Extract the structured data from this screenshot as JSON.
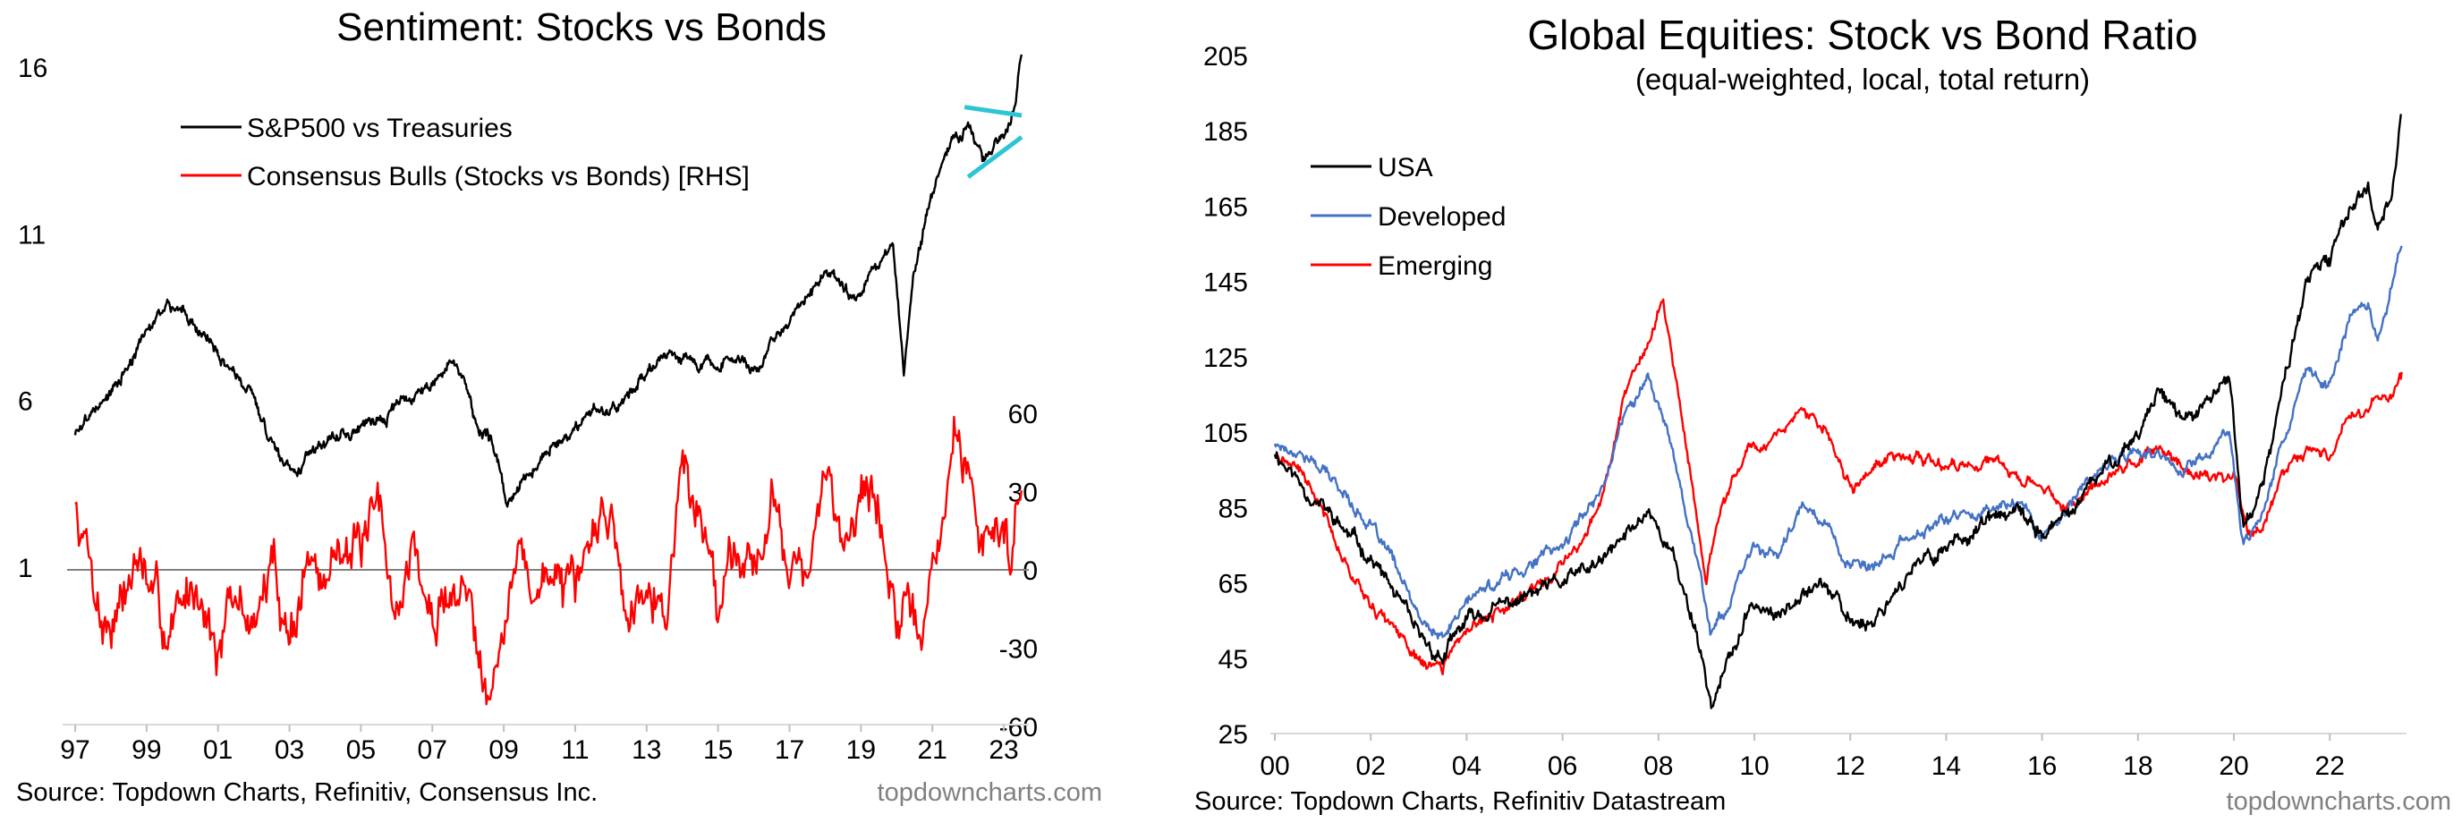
{
  "chart_data": [
    {
      "type": "line",
      "title": "Sentiment: Stocks vs Bonds",
      "x_tick_labels": [
        "97",
        "99",
        "01",
        "03",
        "05",
        "07",
        "09",
        "11",
        "13",
        "15",
        "17",
        "19",
        "21",
        "23"
      ],
      "x_tick_years": [
        1997,
        1999,
        2001,
        2003,
        2005,
        2007,
        2009,
        2011,
        2013,
        2015,
        2017,
        2019,
        2021,
        2023
      ],
      "xlim": [
        1996.9,
        2023.7
      ],
      "left_axis": {
        "ticks": [
          1,
          6,
          11,
          16
        ],
        "ylim": [
          -4,
          16
        ]
      },
      "right_axis": {
        "ticks": [
          -60,
          -30,
          0,
          30,
          60
        ],
        "ylim": [
          -60,
          60
        ]
      },
      "legend_position": "top-left",
      "legend": [
        {
          "label": "S&P500 vs Treasuries",
          "color": "#000000"
        },
        {
          "label": "Consensus Bulls (Stocks vs Bonds) [RHS]",
          "color": "#ff0000"
        }
      ],
      "series": [
        {
          "name": "S&P500 vs Treasuries",
          "axis": "left",
          "color": "#000000",
          "noise": 0.22,
          "x": [
            1997.0,
            1997.5,
            1998.0,
            1998.6,
            1999.0,
            1999.5,
            2000.0,
            2000.3,
            2000.8,
            2001.3,
            2001.8,
            2002.4,
            2002.8,
            2003.2,
            2003.7,
            2004.5,
            2005.5,
            2006.5,
            2007.0,
            2007.5,
            2007.9,
            2008.3,
            2008.8,
            2009.1,
            2009.6,
            2010.3,
            2010.8,
            2011.5,
            2012.0,
            2012.8,
            2013.5,
            2014.5,
            2015.5,
            2016.0,
            2016.5,
            2017.0,
            2017.5,
            2018.0,
            2018.5,
            2018.9,
            2019.3,
            2019.9,
            2020.2,
            2020.45,
            2020.8,
            2021.2,
            2021.6,
            2022.0,
            2022.4,
            2022.8,
            2023.0,
            2023.3,
            2023.5
          ],
          "y": [
            5.0,
            5.8,
            6.2,
            7.2,
            8.0,
            8.8,
            8.8,
            8.3,
            7.8,
            6.9,
            6.5,
            5.0,
            4.2,
            4.0,
            4.6,
            5.0,
            5.4,
            6.2,
            6.6,
            7.1,
            6.6,
            5.2,
            4.4,
            2.8,
            3.7,
            4.6,
            5.0,
            5.8,
            5.6,
            6.7,
            7.3,
            7.1,
            7.3,
            6.9,
            7.8,
            8.4,
            9.0,
            9.8,
            9.3,
            9.1,
            10.0,
            10.7,
            6.8,
            9.7,
            11.3,
            13.0,
            13.7,
            14.3,
            13.2,
            13.8,
            14.0,
            14.8,
            16.5
          ]
        },
        {
          "name": "Consensus Bulls (Stocks vs Bonds) [RHS]",
          "axis": "right",
          "color": "#ff0000",
          "noise": 14,
          "x": [
            1997.0,
            1997.4,
            1997.8,
            1998.3,
            1998.8,
            1999.4,
            2000.0,
            2000.5,
            2001.0,
            2001.5,
            2002.0,
            2002.6,
            2003.0,
            2003.5,
            2004.0,
            2004.5,
            2005.0,
            2005.5,
            2006.0,
            2006.5,
            2007.0,
            2007.5,
            2008.0,
            2008.5,
            2009.0,
            2009.5,
            2010.0,
            2010.5,
            2011.0,
            2011.5,
            2012.0,
            2012.5,
            2013.0,
            2013.5,
            2014.0,
            2014.5,
            2015.0,
            2015.5,
            2016.0,
            2016.5,
            2017.0,
            2017.5,
            2018.0,
            2018.5,
            2019.0,
            2019.5,
            2020.0,
            2020.4,
            2020.8,
            2021.2,
            2021.6,
            2022.0,
            2022.4,
            2022.8,
            2023.2,
            2023.5
          ],
          "y": [
            25,
            8,
            -20,
            -10,
            5,
            -25,
            -15,
            0,
            -30,
            -15,
            -20,
            0,
            -25,
            5,
            -10,
            20,
            5,
            15,
            -15,
            10,
            -25,
            -5,
            -10,
            -35,
            -20,
            5,
            -10,
            5,
            -20,
            15,
            25,
            -20,
            10,
            -15,
            40,
            20,
            -10,
            15,
            5,
            25,
            10,
            -5,
            30,
            15,
            35,
            20,
            -15,
            -30,
            -20,
            10,
            50,
            35,
            10,
            20,
            10,
            35
          ]
        }
      ]
    },
    {
      "type": "line",
      "title": "Global Equities:  Stock vs Bond Ratio",
      "subtitle": "(equal-weighted, local, total return)",
      "x_tick_labels": [
        "00",
        "02",
        "04",
        "06",
        "08",
        "10",
        "12",
        "14",
        "16",
        "18",
        "20",
        "22"
      ],
      "x_tick_years": [
        2000,
        2002,
        2004,
        2006,
        2008,
        2010,
        2012,
        2014,
        2016,
        2018,
        2020,
        2022
      ],
      "xlim": [
        2000,
        2023.6
      ],
      "y_ticks": [
        25,
        45,
        65,
        85,
        105,
        125,
        145,
        165,
        185,
        205
      ],
      "ylim": [
        25,
        205
      ],
      "legend_position": "top-left",
      "legend": [
        {
          "label": "USA",
          "color": "#000000"
        },
        {
          "label": "Developed",
          "color": "#4472c4"
        },
        {
          "label": "Emerging",
          "color": "#ff0000"
        }
      ],
      "series": [
        {
          "name": "USA",
          "color": "#000000",
          "noise": 2.6,
          "x": [
            2000.0,
            2000.5,
            2001.0,
            2001.5,
            2002.0,
            2002.5,
            2003.0,
            2003.5,
            2004.0,
            2005.0,
            2006.0,
            2006.8,
            2007.5,
            2007.8,
            2008.3,
            2008.8,
            2009.1,
            2009.5,
            2010.0,
            2010.5,
            2011.0,
            2011.5,
            2011.9,
            2012.5,
            2013.0,
            2014.0,
            2015.0,
            2015.5,
            2016.0,
            2016.5,
            2017.0,
            2017.5,
            2018.0,
            2018.5,
            2018.9,
            2019.5,
            2019.9,
            2020.2,
            2020.6,
            2021.0,
            2021.5,
            2022.0,
            2022.4,
            2022.8,
            2023.0,
            2023.3,
            2023.5
          ],
          "y": [
            100,
            92,
            85,
            78,
            72,
            62,
            50,
            45,
            55,
            60,
            65,
            70,
            80,
            85,
            72,
            52,
            33,
            45,
            60,
            55,
            65,
            65,
            55,
            55,
            65,
            75,
            82,
            83,
            78,
            82,
            90,
            98,
            105,
            118,
            108,
            112,
            120,
            80,
            90,
            115,
            145,
            150,
            165,
            170,
            160,
            170,
            190
          ]
        },
        {
          "name": "Developed",
          "color": "#4472c4",
          "noise": 2.0,
          "x": [
            2000.0,
            2000.5,
            2001.0,
            2001.5,
            2002.0,
            2002.5,
            2003.0,
            2003.5,
            2004.0,
            2005.0,
            2006.0,
            2006.8,
            2007.3,
            2007.8,
            2008.3,
            2008.8,
            2009.1,
            2009.5,
            2010.0,
            2010.5,
            2011.0,
            2011.5,
            2011.9,
            2012.5,
            2013.0,
            2014.0,
            2015.0,
            2015.5,
            2016.0,
            2016.5,
            2017.0,
            2017.5,
            2018.0,
            2018.5,
            2018.9,
            2019.5,
            2019.9,
            2020.2,
            2020.6,
            2021.0,
            2021.5,
            2022.0,
            2022.4,
            2022.8,
            2023.0,
            2023.3,
            2023.5
          ],
          "y": [
            102,
            100,
            95,
            88,
            80,
            70,
            55,
            50,
            60,
            68,
            75,
            90,
            110,
            120,
            100,
            72,
            52,
            60,
            75,
            72,
            85,
            82,
            70,
            68,
            75,
            82,
            85,
            87,
            78,
            84,
            92,
            98,
            100,
            98,
            95,
            100,
            105,
            75,
            85,
            102,
            120,
            118,
            135,
            140,
            130,
            145,
            155
          ]
        },
        {
          "name": "Emerging",
          "color": "#ff0000",
          "noise": 2.0,
          "x": [
            2000.0,
            2000.5,
            2001.0,
            2001.5,
            2002.0,
            2002.5,
            2003.0,
            2003.5,
            2004.0,
            2005.0,
            2006.0,
            2006.8,
            2007.3,
            2007.8,
            2008.1,
            2008.6,
            2009.0,
            2009.3,
            2009.8,
            2010.5,
            2011.0,
            2011.5,
            2012.0,
            2012.5,
            2013.0,
            2014.0,
            2015.0,
            2015.5,
            2016.0,
            2016.5,
            2017.0,
            2017.5,
            2018.0,
            2018.5,
            2019.0,
            2019.5,
            2020.0,
            2020.3,
            2020.6,
            2021.0,
            2021.5,
            2022.0,
            2022.4,
            2022.8,
            2023.0,
            2023.3,
            2023.5
          ],
          "y": [
            100,
            95,
            85,
            70,
            60,
            52,
            45,
            42,
            52,
            60,
            70,
            85,
            115,
            130,
            140,
            100,
            65,
            85,
            100,
            105,
            110,
            105,
            90,
            95,
            100,
            95,
            98,
            92,
            90,
            85,
            90,
            95,
            98,
            100,
            95,
            93,
            95,
            75,
            80,
            95,
            100,
            100,
            110,
            110,
            115,
            115,
            120
          ]
        }
      ]
    }
  ],
  "footer": {
    "left_source": "Source: Topdown Charts, Refinitiv, Consensus Inc.",
    "left_site": "topdowncharts.com",
    "right_source": "Source: Topdown Charts, Refinitiv Datastream",
    "right_site": "topdowncharts.com"
  },
  "colors": {
    "triangle_annotation": "#2ec4d6",
    "zero_line": "#808080",
    "site_text": "#808080"
  }
}
